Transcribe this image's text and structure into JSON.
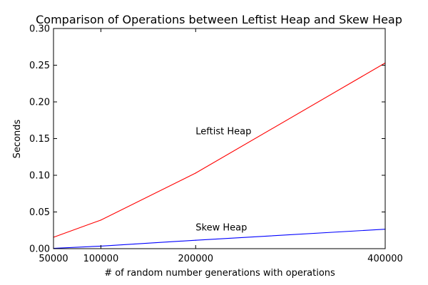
{
  "chart_data": {
    "type": "line",
    "title": "Comparison of Operations between Leftist Heap and Skew Heap",
    "xlabel": "# of random number generations with operations",
    "ylabel": "Seconds",
    "xlim": [
      50000,
      400000
    ],
    "ylim": [
      0,
      0.3
    ],
    "x_ticks": [
      50000,
      100000,
      200000,
      400000
    ],
    "y_ticks": [
      0.0,
      0.05,
      0.1,
      0.15,
      0.2,
      0.25,
      0.3
    ],
    "x_tick_labels": [
      "50000",
      "100000",
      "200000",
      "400000"
    ],
    "y_tick_labels": [
      "0.00",
      "0.05",
      "0.10",
      "0.15",
      "0.20",
      "0.25",
      "0.30"
    ],
    "grid": false,
    "series": [
      {
        "name": "Leftist Heap",
        "color": "#ff0000",
        "x": [
          50000,
          100000,
          200000,
          400000
        ],
        "values": [
          0.0155,
          0.039,
          0.103,
          0.253
        ]
      },
      {
        "name": "Skew Heap",
        "color": "#0000ff",
        "x": [
          50000,
          100000,
          200000,
          400000
        ],
        "values": [
          0.0005,
          0.0035,
          0.0115,
          0.0265
        ]
      }
    ],
    "annotations": [
      {
        "text": "Leftist Heap",
        "x": 200000,
        "y": 0.156
      },
      {
        "text": "Skew Heap",
        "x": 200000,
        "y": 0.025
      }
    ]
  }
}
